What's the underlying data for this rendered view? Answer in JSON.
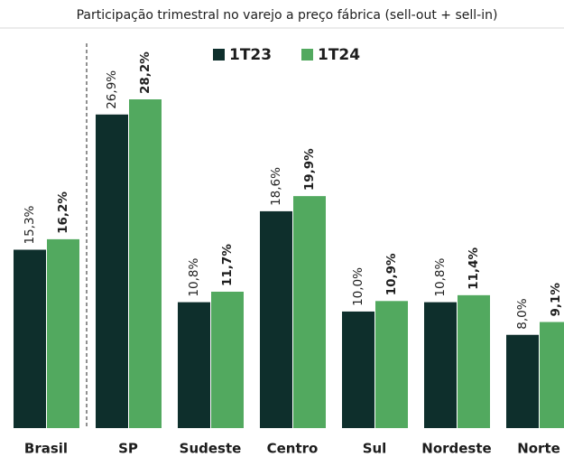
{
  "chart_data": {
    "type": "bar",
    "title": "Participação trimestral no varejo a preço fábrica (sell-out + sell-in)",
    "categories": [
      "Brasil",
      "SP",
      "Sudeste",
      "Centro",
      "Sul",
      "Nordeste",
      "Norte"
    ],
    "series": [
      {
        "name": "1T23",
        "color": "#0e2f2c",
        "values": [
          15.3,
          26.9,
          10.8,
          18.6,
          10.0,
          10.8,
          8.0
        ],
        "value_labels": [
          "15,3%",
          "26,9%",
          "10,8%",
          "18,6%",
          "10,0%",
          "10,8%",
          "8,0%"
        ]
      },
      {
        "name": "1T24",
        "color": "#52a95f",
        "values": [
          16.2,
          28.2,
          11.7,
          19.9,
          10.9,
          11.4,
          9.1
        ],
        "value_labels": [
          "16,2%",
          "28,2%",
          "11,7%",
          "19,9%",
          "10,9%",
          "11,4%",
          "9,1%"
        ]
      }
    ]
  }
}
